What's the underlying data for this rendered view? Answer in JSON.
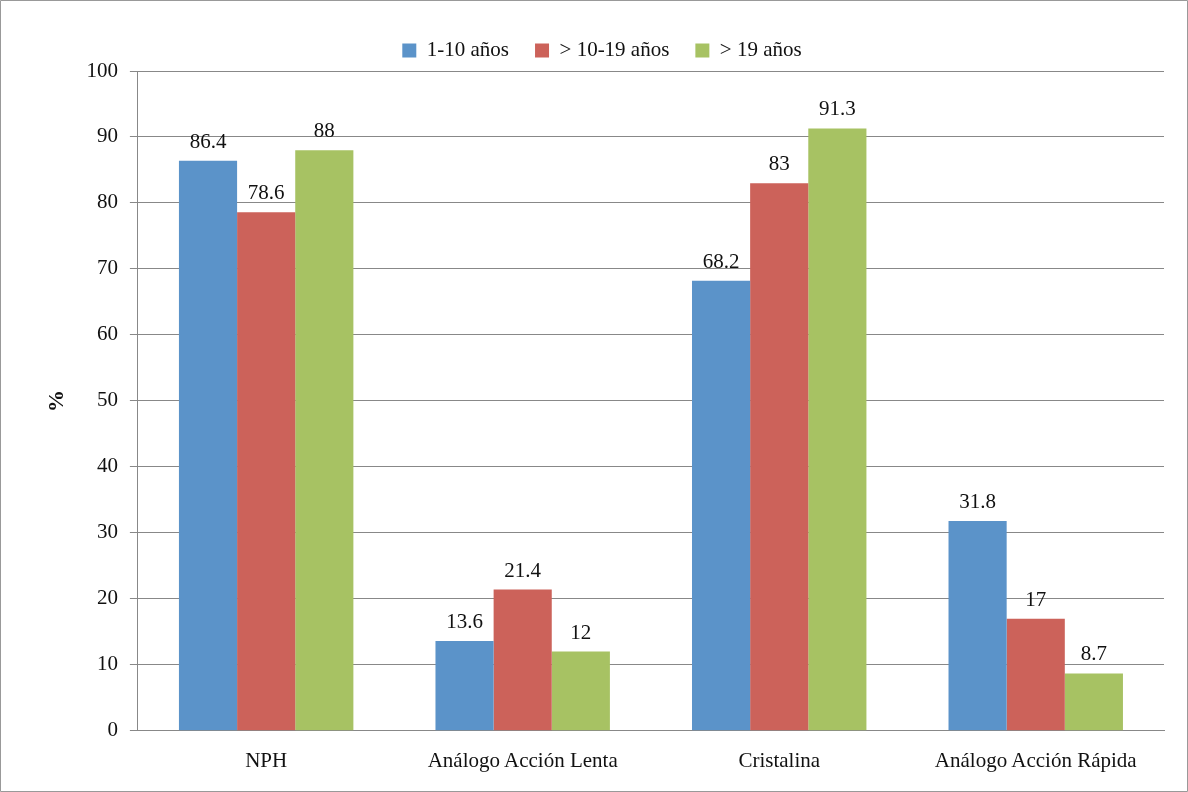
{
  "chart_data": {
    "type": "bar",
    "ylabel": "%",
    "categories": [
      "NPH",
      "Análogo Acción Lenta",
      "Cristalina",
      "Análogo Acción Rápida"
    ],
    "series": [
      {
        "name": "1-10 años",
        "color": "#5b93c9",
        "values": [
          86.4,
          13.6,
          68.2,
          31.8
        ]
      },
      {
        "name": "> 10-19 años",
        "color": "#cc625a",
        "values": [
          78.6,
          21.4,
          83,
          17
        ]
      },
      {
        "name": "> 19 años",
        "color": "#a7c263",
        "values": [
          88,
          12,
          91.3,
          8.7
        ]
      }
    ],
    "ylim": [
      0,
      100
    ],
    "yticks": [
      0,
      10,
      20,
      30,
      40,
      50,
      60,
      70,
      80,
      90,
      100
    ],
    "grid": "y",
    "legend": "top",
    "data_labels": true
  }
}
